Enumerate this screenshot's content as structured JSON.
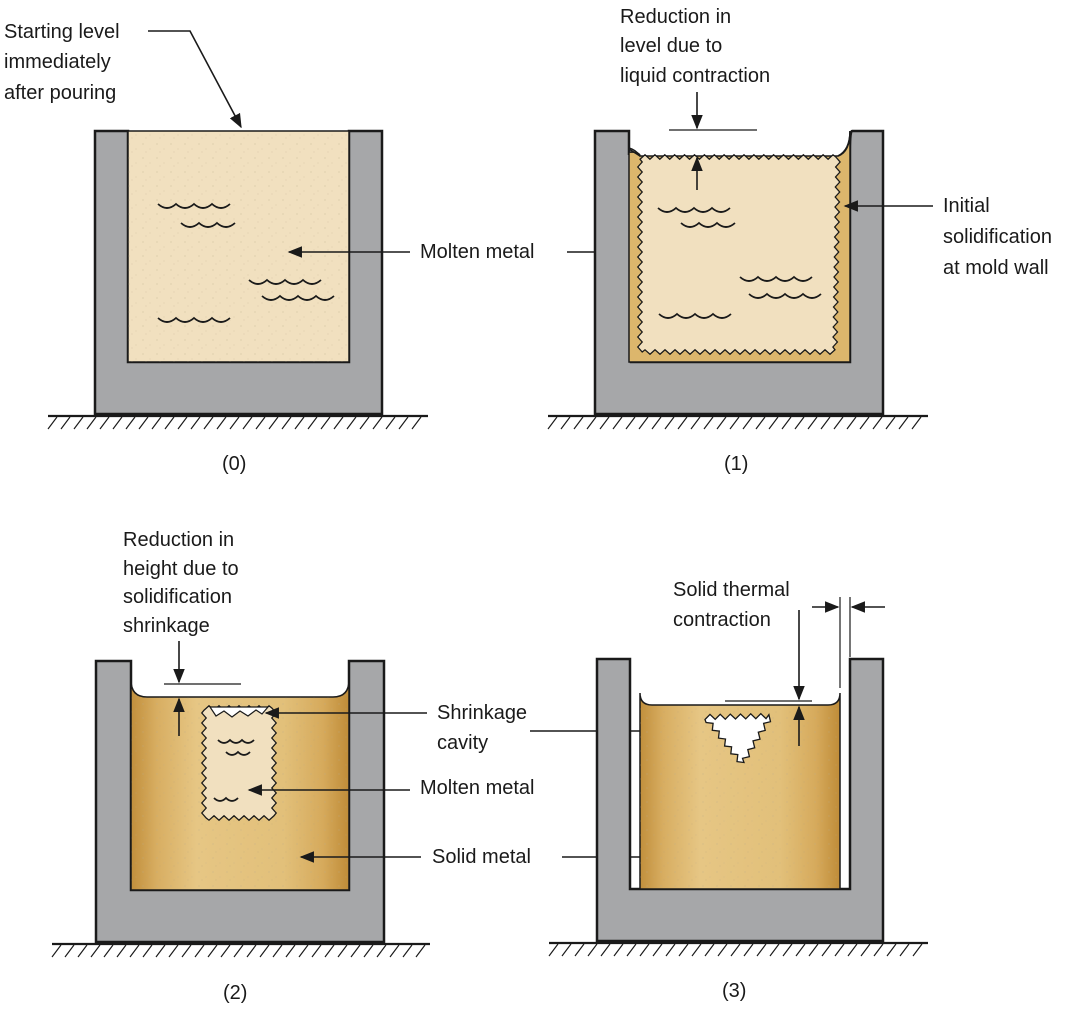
{
  "colors": {
    "mold_gray": "#a6a7a9",
    "molten_metal": "#f1e0bf",
    "solid_metal": "#dcb66c",
    "solid_metal_edge": "#c18f3c",
    "line": "#1a1a1a"
  },
  "panels": [
    {
      "caption": "(0)",
      "labels": {
        "starting_level": [
          "Starting level",
          "immediately",
          "after pouring"
        ],
        "molten_metal": "Molten metal"
      }
    },
    {
      "caption": "(1)",
      "labels": {
        "reduction_level": [
          "Reduction in",
          "level due to",
          "liquid contraction"
        ],
        "initial_solidification": [
          "Initial",
          "solidification",
          "at mold wall"
        ]
      }
    },
    {
      "caption": "(2)",
      "labels": {
        "reduction_height": [
          "Reduction in",
          "height due to",
          "solidification",
          "shrinkage"
        ],
        "shrinkage_cavity": [
          "Shrinkage",
          "cavity"
        ],
        "molten_metal": "Molten metal",
        "solid_metal": "Solid metal"
      }
    },
    {
      "caption": "(3)",
      "labels": {
        "solid_thermal": [
          "Solid thermal",
          "contraction"
        ]
      }
    }
  ]
}
